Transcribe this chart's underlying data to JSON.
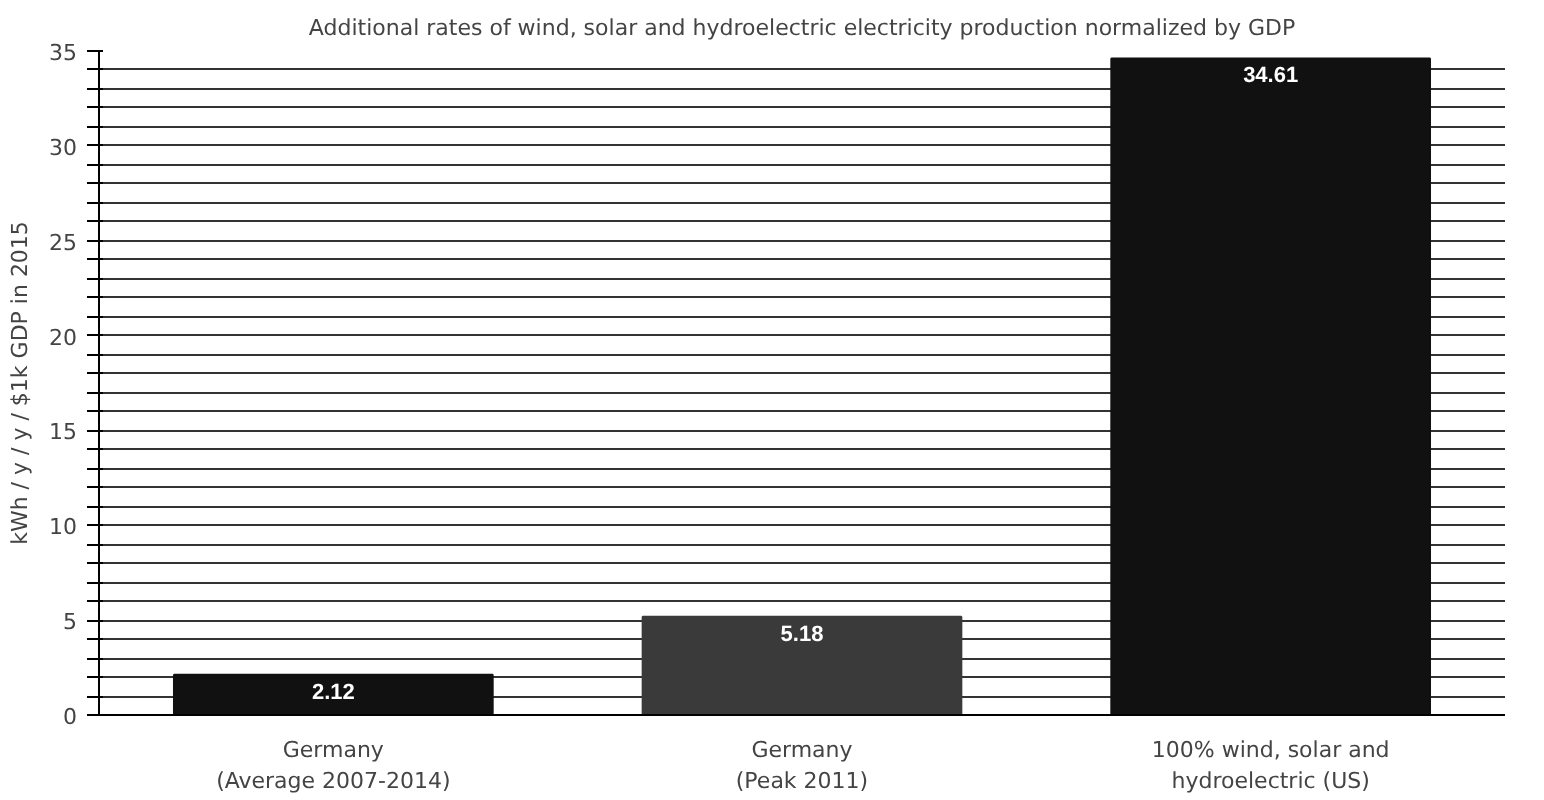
{
  "chart_data": {
    "type": "bar",
    "title": "Additional rates of wind, solar and hydroelectric electricity production normalized by GDP",
    "ylabel": "kWh / y / y / $1k GDP in 2015",
    "categories": [
      "Germany\n(Average 2007-2014)",
      "Germany\n(Peak 2011)",
      "100% wind, solar and\nhydroelectric (US)"
    ],
    "values": [
      2.12,
      5.18,
      34.61
    ],
    "colors": [
      "#111111",
      "#3a3a3a",
      "#111111"
    ],
    "data_labels": true,
    "ylim": [
      0,
      35
    ],
    "yticks": [
      0,
      {
        "value": 1,
        "label": null
      },
      {
        "value": 2,
        "label": null
      },
      {
        "value": 3,
        "label": null
      },
      {
        "value": 4,
        "label": null
      },
      5,
      {
        "value": 6,
        "label": null
      },
      {
        "value": 7,
        "label": null
      },
      {
        "value": 8,
        "label": null
      },
      {
        "value": 9,
        "label": null
      },
      10,
      {
        "value": 11,
        "label": null
      },
      {
        "value": 12,
        "label": null
      },
      {
        "value": 13,
        "label": null
      },
      {
        "value": 14,
        "label": null
      },
      15,
      {
        "value": 16,
        "label": null
      },
      {
        "value": 17,
        "label": null
      },
      {
        "value": 18,
        "label": null
      },
      {
        "value": 19,
        "label": null
      },
      20,
      {
        "value": 21,
        "label": null
      },
      {
        "value": 22,
        "label": null
      },
      {
        "value": 23,
        "label": null
      },
      {
        "value": 24,
        "label": null
      },
      25,
      {
        "value": 26,
        "label": null
      },
      {
        "value": 27,
        "label": null
      },
      {
        "value": 28,
        "label": null
      },
      {
        "value": 29,
        "label": null
      },
      30,
      {
        "value": 31,
        "label": null
      },
      {
        "value": 32,
        "label": null
      },
      {
        "value": 33,
        "label": null
      },
      {
        "value": 34,
        "label": null
      },
      35
    ],
    "grid": "y"
  }
}
